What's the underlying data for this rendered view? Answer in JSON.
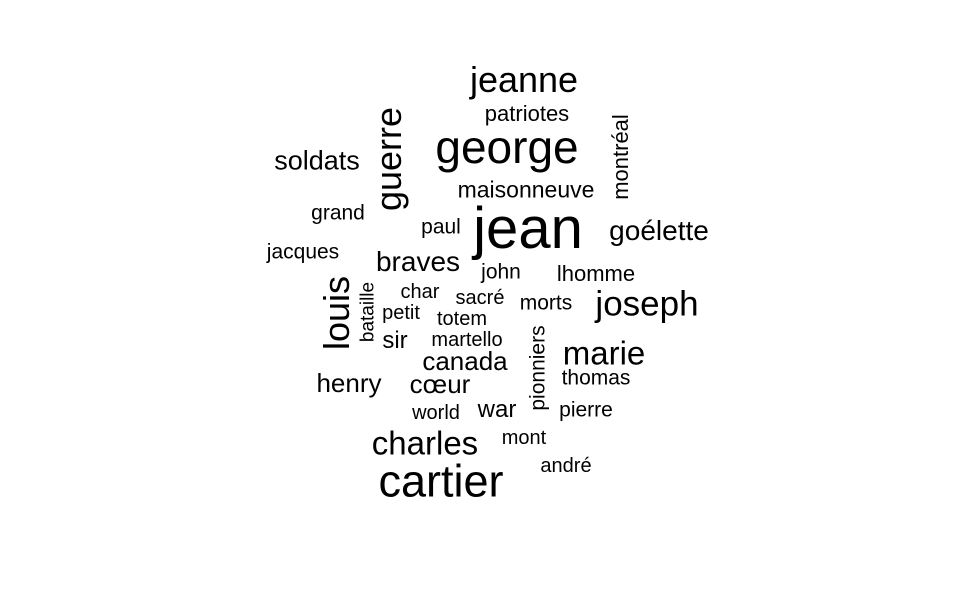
{
  "wordcloud": {
    "text_color": "#000000",
    "background": "#ffffff",
    "words": [
      {
        "text": "jean",
        "weight": 1.0
      },
      {
        "text": "george",
        "weight": 0.8
      },
      {
        "text": "cartier",
        "weight": 0.78
      },
      {
        "text": "jeanne",
        "weight": 0.62
      },
      {
        "text": "guerre",
        "weight": 0.62
      },
      {
        "text": "louis",
        "weight": 0.62
      },
      {
        "text": "joseph",
        "weight": 0.6
      },
      {
        "text": "marie",
        "weight": 0.58
      },
      {
        "text": "charles",
        "weight": 0.58
      },
      {
        "text": "goélette",
        "weight": 0.5
      },
      {
        "text": "braves",
        "weight": 0.48
      },
      {
        "text": "soldats",
        "weight": 0.47
      },
      {
        "text": "henry",
        "weight": 0.46
      },
      {
        "text": "cœur",
        "weight": 0.46
      },
      {
        "text": "canada",
        "weight": 0.46
      },
      {
        "text": "sir",
        "weight": 0.42
      },
      {
        "text": "maisonneuve",
        "weight": 0.4
      },
      {
        "text": "montréal",
        "weight": 0.38
      },
      {
        "text": "lhomme",
        "weight": 0.38
      },
      {
        "text": "patriotes",
        "weight": 0.36
      },
      {
        "text": "paul",
        "weight": 0.36
      },
      {
        "text": "jacques",
        "weight": 0.36
      },
      {
        "text": "grand",
        "weight": 0.36
      },
      {
        "text": "john",
        "weight": 0.36
      },
      {
        "text": "war",
        "weight": 0.4
      },
      {
        "text": "pionniers",
        "weight": 0.36
      },
      {
        "text": "thomas",
        "weight": 0.36
      },
      {
        "text": "pierre",
        "weight": 0.36
      },
      {
        "text": "morts",
        "weight": 0.36
      },
      {
        "text": "sacré",
        "weight": 0.34
      },
      {
        "text": "totem",
        "weight": 0.34
      },
      {
        "text": "petit",
        "weight": 0.34
      },
      {
        "text": "char",
        "weight": 0.34
      },
      {
        "text": "martello",
        "weight": 0.34
      },
      {
        "text": "bataille",
        "weight": 0.32
      },
      {
        "text": "world",
        "weight": 0.34
      },
      {
        "text": "mont",
        "weight": 0.34
      },
      {
        "text": "andré",
        "weight": 0.34
      }
    ]
  }
}
